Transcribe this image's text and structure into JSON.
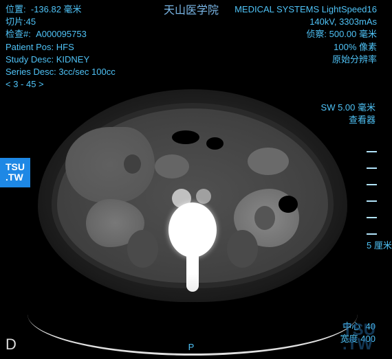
{
  "header": {
    "institution": "天山医学院",
    "scanner": "MEDICAL SYSTEMS LightSpeed16"
  },
  "top_left": {
    "position_label": "位置:",
    "position_value": "-136.82 毫米",
    "slice_label": "切片:",
    "slice_value": "45",
    "exam_label": "检查#:",
    "exam_value": "A000095753",
    "patient_pos_label": "Patient Pos:",
    "patient_pos_value": "HFS",
    "study_desc_label": "Study Desc:",
    "study_desc_value": "KIDNEY",
    "series_desc_label": "Series Desc:",
    "series_desc_value": "3cc/sec 100cc",
    "range": "< 3 - 45 >"
  },
  "top_right": {
    "kv_mas": "140kV, 3303mAs",
    "fov_label": "侦察:",
    "fov_value": "500.00 毫米",
    "zoom": "100% 像素",
    "resolution": "原始分辨率",
    "sw": "SW 5.00 毫米",
    "viewer": "查看器"
  },
  "scale": {
    "label": "5 厘米"
  },
  "bottom": {
    "center_label": "中心",
    "center_value": "40",
    "width_label": "宽度",
    "width_value": "400",
    "orientation": "P"
  },
  "image_label": "D",
  "badges": {
    "tsu_top": "TSU",
    "tsu_bottom": ".TW"
  },
  "colors": {
    "text": "#4fc3f7",
    "background": "#000000",
    "badge_bg": "#1e88e5",
    "bone": "#ffffff"
  }
}
